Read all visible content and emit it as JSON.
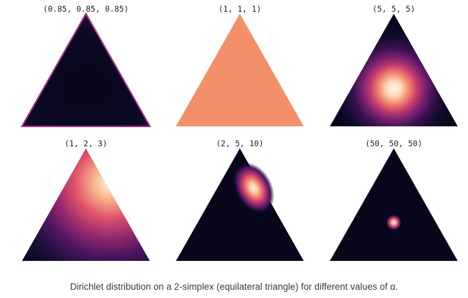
{
  "figure": {
    "caption": "Dirichlet distribution on a 2-simplex (equilateral triangle) for different values of α.",
    "panels": [
      {
        "title": "(0.85, 0.85, 0.85)",
        "alpha": [
          0.85,
          0.85,
          0.85
        ]
      },
      {
        "title": "(1, 1, 1)",
        "alpha": [
          1,
          1,
          1
        ]
      },
      {
        "title": "(5, 5, 5)",
        "alpha": [
          5,
          5,
          5
        ]
      },
      {
        "title": "(1, 2, 3)",
        "alpha": [
          1,
          2,
          3
        ]
      },
      {
        "title": "(2, 5, 10)",
        "alpha": [
          2,
          5,
          10
        ]
      },
      {
        "title": "(50, 50, 50)",
        "alpha": [
          50,
          50,
          50
        ]
      }
    ]
  },
  "colors": {
    "background": "#ffffff",
    "colormap": "magma",
    "density_low": "#0d0a24",
    "density_mid": "#c23b6e",
    "density_high": "#fdf4e2",
    "uniform_fill": "#f3906a",
    "text": "#222222"
  }
}
